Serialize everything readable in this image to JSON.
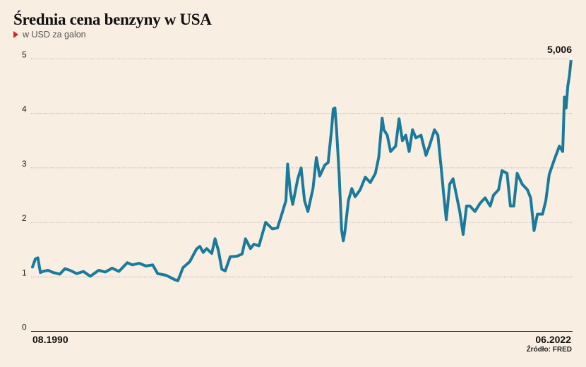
{
  "header": {
    "title": "Średnia cena benzyny w USA",
    "subtitle": "w USD za galon",
    "source": "Źródło: FRED"
  },
  "colors": {
    "background": "#f9eee2",
    "line": "#1a7a9c",
    "marker": "#d8232a",
    "grid": "#9a9a9a"
  },
  "chart_data": {
    "type": "line",
    "title": "Średnia cena benzyny w USA",
    "ylabel": "w USD za galon",
    "ylim": [
      0,
      5
    ],
    "yticks": [
      "0",
      "1",
      "2",
      "3",
      "4",
      "5"
    ],
    "x_start_label": "08.1990",
    "x_end_label": "06.2022",
    "last_value_label": "5,006",
    "grid": "horizontal dotted",
    "series": [
      {
        "x": [
          1990.58,
          1990.75,
          1990.9,
          1991.05,
          1991.2,
          1991.5,
          1991.8,
          1992.2,
          1992.5,
          1992.8,
          1993.2,
          1993.6,
          1994.0,
          1994.5,
          1994.9,
          1995.3,
          1995.7,
          1996.2,
          1996.5,
          1996.9,
          1997.3,
          1997.7,
          1998.0,
          1998.5,
          1999.0,
          1999.2,
          1999.5,
          1999.9,
          2000.3,
          2000.5,
          2000.7,
          2000.9,
          2001.2,
          2001.4,
          2001.6,
          2001.8,
          2002.0,
          2002.3,
          2002.7,
          2003.0,
          2003.2,
          2003.5,
          2003.7,
          2004.0,
          2004.4,
          2004.8,
          2005.1,
          2005.4,
          2005.6,
          2005.7,
          2005.85,
          2006.0,
          2006.3,
          2006.5,
          2006.7,
          2006.9,
          2007.2,
          2007.4,
          2007.6,
          2007.9,
          2008.1,
          2008.3,
          2008.4,
          2008.5,
          2008.6,
          2008.75,
          2008.9,
          2009.0,
          2009.1,
          2009.3,
          2009.5,
          2009.7,
          2010.0,
          2010.3,
          2010.6,
          2010.9,
          2011.1,
          2011.3,
          2011.4,
          2011.6,
          2011.8,
          2012.1,
          2012.3,
          2012.5,
          2012.7,
          2012.9,
          2013.1,
          2013.3,
          2013.6,
          2013.9,
          2014.1,
          2014.4,
          2014.6,
          2014.8,
          2014.95,
          2015.1,
          2015.3,
          2015.5,
          2015.7,
          2015.9,
          2016.1,
          2016.3,
          2016.5,
          2016.8,
          2017.1,
          2017.4,
          2017.7,
          2017.9,
          2018.2,
          2018.4,
          2018.7,
          2018.9,
          2019.1,
          2019.3,
          2019.6,
          2019.9,
          2020.1,
          2020.3,
          2020.5,
          2020.8,
          2021.0,
          2021.2,
          2021.5,
          2021.8,
          2022.0,
          2022.1,
          2022.2,
          2022.3,
          2022.4,
          2022.5
        ],
        "values": [
          1.18,
          1.33,
          1.35,
          1.08,
          1.1,
          1.12,
          1.08,
          1.05,
          1.15,
          1.12,
          1.06,
          1.1,
          1.01,
          1.12,
          1.09,
          1.16,
          1.1,
          1.26,
          1.22,
          1.25,
          1.2,
          1.22,
          1.06,
          1.03,
          0.95,
          0.93,
          1.17,
          1.28,
          1.51,
          1.56,
          1.45,
          1.52,
          1.43,
          1.7,
          1.48,
          1.14,
          1.11,
          1.37,
          1.38,
          1.42,
          1.7,
          1.52,
          1.6,
          1.57,
          2.0,
          1.88,
          1.9,
          2.2,
          2.4,
          3.07,
          2.58,
          2.33,
          2.8,
          3.0,
          2.4,
          2.2,
          2.62,
          3.19,
          2.85,
          3.05,
          3.1,
          3.7,
          4.08,
          4.1,
          3.7,
          2.9,
          1.85,
          1.66,
          1.85,
          2.4,
          2.62,
          2.47,
          2.6,
          2.83,
          2.73,
          2.9,
          3.2,
          3.91,
          3.7,
          3.6,
          3.3,
          3.4,
          3.9,
          3.5,
          3.6,
          3.3,
          3.7,
          3.55,
          3.6,
          3.23,
          3.4,
          3.7,
          3.6,
          3.0,
          2.5,
          2.05,
          2.7,
          2.8,
          2.5,
          2.2,
          1.78,
          2.3,
          2.3,
          2.2,
          2.35,
          2.45,
          2.3,
          2.5,
          2.6,
          2.95,
          2.9,
          2.3,
          2.3,
          2.9,
          2.7,
          2.6,
          2.45,
          1.85,
          2.15,
          2.15,
          2.4,
          2.88,
          3.15,
          3.4,
          3.3,
          4.3,
          4.1,
          4.5,
          4.7,
          5.006
        ]
      }
    ]
  }
}
